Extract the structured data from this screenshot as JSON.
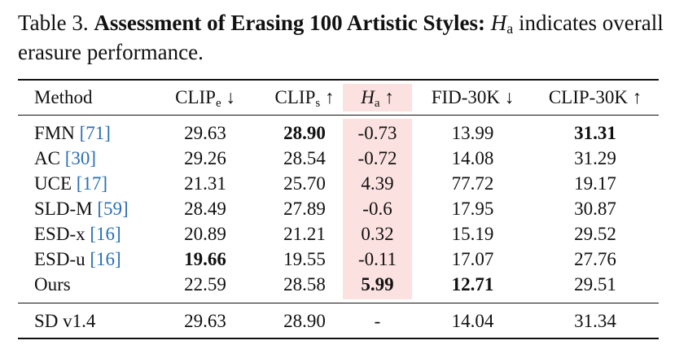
{
  "caption": {
    "prefix": "Table 3. ",
    "bold_title": "Assessment of Erasing 100 Artistic Styles:",
    "metric_symbol": "H",
    "metric_subscript": "a",
    "suffix": " indicates overall erasure performance."
  },
  "header": {
    "method": "Method",
    "clip_e": "CLIP",
    "clip_e_sub": "e",
    "clip_e_arrow": "↓",
    "clip_s": "CLIP",
    "clip_s_sub": "s",
    "clip_s_arrow": "↑",
    "ha": "H",
    "ha_sub": "a",
    "ha_arrow": "↑",
    "fid": "FID-30K ↓",
    "clip30k": "CLIP-30K ↑"
  },
  "rows": [
    {
      "method": "FMN ",
      "cite": "[71]",
      "clip_e": "29.63",
      "clip_s": "28.90",
      "ha": "-0.73",
      "fid": "13.99",
      "clip30k": "31.31"
    },
    {
      "method": "AC ",
      "cite": "[30]",
      "clip_e": "29.26",
      "clip_s": "28.54",
      "ha": "-0.72",
      "fid": "14.08",
      "clip30k": "31.29"
    },
    {
      "method": "UCE ",
      "cite": "[17]",
      "clip_e": "21.31",
      "clip_s": "25.70",
      "ha": "4.39",
      "fid": "77.72",
      "clip30k": "19.17"
    },
    {
      "method": "SLD-M ",
      "cite": "[59]",
      "clip_e": "28.49",
      "clip_s": "27.89",
      "ha": "-0.6",
      "fid": "17.95",
      "clip30k": "30.87"
    },
    {
      "method": "ESD-x ",
      "cite": "[16]",
      "clip_e": "20.89",
      "clip_s": "21.21",
      "ha": "0.32",
      "fid": "15.19",
      "clip30k": "29.52"
    },
    {
      "method": "ESD-u ",
      "cite": "[16]",
      "clip_e": "19.66",
      "clip_s": "19.55",
      "ha": "-0.11",
      "fid": "17.07",
      "clip30k": "27.76"
    },
    {
      "method": "Ours",
      "cite": "",
      "clip_e": "22.59",
      "clip_s": "28.58",
      "ha": "5.99",
      "fid": "12.71",
      "clip30k": "29.51"
    }
  ],
  "baseline": {
    "method": "SD v1.4",
    "clip_e": "29.63",
    "clip_s": "28.90",
    "ha": "-",
    "fid": "14.04",
    "clip30k": "31.34"
  },
  "highlight_color": "#fbe2e0",
  "citation_color": "#2a6fb5"
}
